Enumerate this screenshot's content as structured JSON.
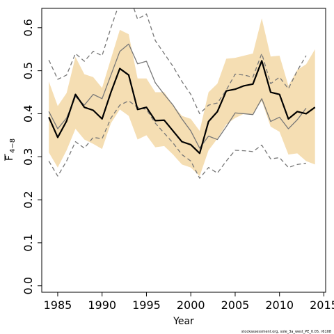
{
  "chart_data": {
    "type": "line",
    "xlabel": "Year",
    "ylabel": "F",
    "ylabel_subscript": "4−8",
    "xlim": [
      1983.2,
      2015.2
    ],
    "ylim": [
      -0.015,
      0.645
    ],
    "x_ticks": [
      1985,
      1990,
      1995,
      2000,
      2005,
      2010,
      2015
    ],
    "y_ticks": [
      0.0,
      0.1,
      0.2,
      0.3,
      0.4,
      0.5,
      0.6
    ],
    "y_tick_labels": [
      "0.0",
      "0.1",
      "0.2",
      "0.3",
      "0.4",
      "0.5",
      "0.6"
    ],
    "grid": false,
    "note": "stockassessment.org, sole_3a_west_PE_0.05, r6108",
    "band": {
      "color": "#f5deb3",
      "x": [
        1984,
        1985,
        1986,
        1987,
        1988,
        1989,
        1990,
        1991,
        1992,
        1993,
        1994,
        1995,
        1996,
        1997,
        1998,
        1999,
        2000,
        2001,
        2002,
        2003,
        2004,
        2005,
        2006,
        2007,
        2008,
        2009,
        2010,
        2011,
        2012,
        2013,
        2014
      ],
      "upper": [
        0.475,
        0.418,
        0.448,
        0.532,
        0.492,
        0.485,
        0.46,
        0.528,
        0.595,
        0.585,
        0.482,
        0.482,
        0.45,
        0.45,
        0.42,
        0.395,
        0.388,
        0.36,
        0.45,
        0.47,
        0.528,
        0.53,
        0.535,
        0.54,
        0.622,
        0.533,
        0.535,
        0.465,
        0.502,
        0.515,
        0.55
      ],
      "lower": [
        0.31,
        0.275,
        0.315,
        0.365,
        0.34,
        0.33,
        0.318,
        0.378,
        0.41,
        0.395,
        0.34,
        0.35,
        0.322,
        0.325,
        0.305,
        0.282,
        0.275,
        0.255,
        0.315,
        0.342,
        0.375,
        0.39,
        0.4,
        0.4,
        0.43,
        0.37,
        0.358,
        0.305,
        0.308,
        0.29,
        0.282
      ]
    },
    "series": [
      {
        "style": "solid-thick",
        "color": "#000000",
        "x": [
          1984,
          1985,
          1986,
          1987,
          1988,
          1989,
          1990,
          1991,
          1992,
          1993,
          1994,
          1995,
          1996,
          1997,
          1998,
          1999,
          2000,
          2001,
          2002,
          2003,
          2004,
          2005,
          2006,
          2007,
          2008,
          2009,
          2010,
          2011,
          2012,
          2013,
          2014
        ],
        "values": [
          0.392,
          0.345,
          0.383,
          0.445,
          0.415,
          0.408,
          0.388,
          0.45,
          0.505,
          0.49,
          0.41,
          0.415,
          0.384,
          0.385,
          0.36,
          0.335,
          0.328,
          0.308,
          0.382,
          0.405,
          0.453,
          0.457,
          0.465,
          0.469,
          0.523,
          0.45,
          0.445,
          0.388,
          0.405,
          0.4,
          0.415
        ]
      },
      {
        "style": "solid-thin",
        "color": "#777777",
        "x": [
          1984,
          1985,
          1986,
          1987,
          1988,
          1989,
          1990,
          1991,
          1992,
          1993,
          1994,
          1995,
          1996,
          1997,
          1998,
          1999,
          2000,
          2001,
          2002,
          2003,
          2004,
          2005,
          2006,
          2007,
          2008,
          2009,
          2010,
          2011,
          2012,
          2013,
          2014
        ],
        "values": [
          0.405,
          0.365,
          0.39,
          0.44,
          0.42,
          0.445,
          0.435,
          0.49,
          0.545,
          0.562,
          0.516,
          0.522,
          0.472,
          0.445,
          0.42,
          0.388,
          0.36,
          0.32,
          0.348,
          0.34,
          0.37,
          0.402,
          0.4,
          0.398,
          0.435,
          0.382,
          0.392,
          0.365,
          0.386,
          0.413,
          null
        ]
      },
      {
        "style": "dashed-upper",
        "color": "#777777",
        "x": [
          1984,
          1985,
          1986,
          1987,
          1988,
          1989,
          1990,
          1991,
          1992,
          1993,
          1994,
          1995,
          1996,
          1997,
          1998,
          1999,
          2000,
          2001,
          2002,
          2003,
          2004,
          2005,
          2006,
          2007,
          2008,
          2009,
          2010,
          2011,
          2012,
          2013,
          2014
        ],
        "values": [
          0.525,
          0.48,
          0.49,
          0.54,
          0.522,
          0.545,
          0.535,
          0.6,
          0.66,
          0.68,
          0.62,
          0.632,
          0.57,
          0.54,
          0.51,
          0.475,
          0.445,
          0.4,
          0.42,
          0.425,
          0.455,
          0.492,
          0.49,
          0.485,
          0.54,
          0.47,
          0.485,
          0.458,
          0.5,
          0.535,
          null
        ]
      },
      {
        "style": "dashed-lower",
        "color": "#777777",
        "x": [
          1984,
          1985,
          1986,
          1987,
          1988,
          1989,
          1990,
          1991,
          1992,
          1993,
          1994,
          1995,
          1996,
          1997,
          1998,
          1999,
          2000,
          2001,
          2002,
          2003,
          2004,
          2005,
          2006,
          2007,
          2008,
          2009,
          2010,
          2011,
          2012,
          2013,
          2014
        ],
        "values": [
          0.29,
          0.255,
          0.29,
          0.335,
          0.32,
          0.345,
          0.342,
          0.39,
          0.42,
          0.43,
          0.415,
          0.41,
          0.378,
          0.355,
          0.332,
          0.305,
          0.29,
          0.25,
          0.275,
          0.262,
          0.29,
          0.315,
          0.314,
          0.312,
          0.327,
          0.295,
          0.298,
          0.275,
          0.282,
          0.285,
          null
        ]
      }
    ]
  }
}
